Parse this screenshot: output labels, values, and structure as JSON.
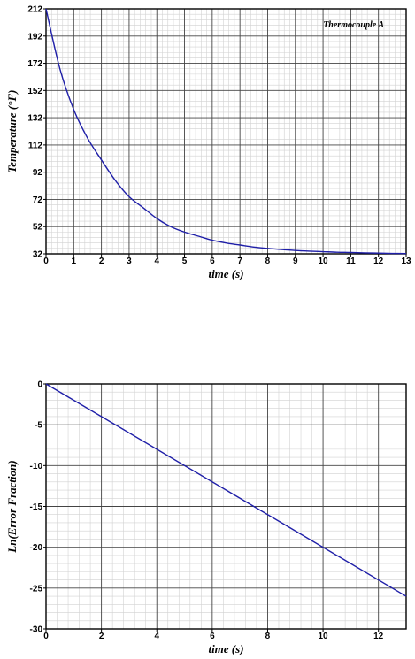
{
  "chart_data": [
    {
      "type": "line",
      "title": "",
      "annotation": "Thermocouple A",
      "xlabel": "time (s)",
      "ylabel": "Temperature (°F)",
      "xlim": [
        0,
        13
      ],
      "ylim": [
        32,
        212
      ],
      "xticks": [
        0,
        1,
        2,
        3,
        4,
        5,
        6,
        7,
        8,
        9,
        10,
        11,
        12,
        13
      ],
      "yticks": [
        32,
        52,
        72,
        92,
        112,
        132,
        152,
        172,
        192,
        212
      ],
      "grid": true,
      "line_color": "#1f1fa8",
      "series": [
        {
          "x": [
            0,
            0.5,
            1,
            1.5,
            2,
            2.5,
            3,
            3.5,
            4,
            4.5,
            5,
            5.5,
            6,
            6.5,
            7,
            7.5,
            8,
            8.5,
            9,
            9.5,
            10,
            10.5,
            11,
            11.5,
            12,
            12.5,
            13
          ],
          "y": [
            212,
            168,
            138,
            117,
            101,
            86,
            74,
            66,
            58,
            52,
            48,
            45,
            42,
            40,
            38.5,
            37,
            36,
            35.2,
            34.5,
            34,
            33.6,
            33.2,
            33,
            32.7,
            32.5,
            32.3,
            32.2
          ]
        }
      ]
    },
    {
      "type": "line",
      "title": "",
      "xlabel": "time (s)",
      "ylabel": "Ln(Error Fraction)",
      "xlim": [
        0,
        13
      ],
      "ylim": [
        -30,
        0
      ],
      "xticks": [
        0,
        2,
        4,
        6,
        8,
        10,
        12
      ],
      "yticks": [
        0,
        -5,
        -10,
        -15,
        -20,
        -25,
        -30
      ],
      "grid": true,
      "line_color": "#1f1fa8",
      "series": [
        {
          "x": [
            0,
            13
          ],
          "y": [
            0,
            -26
          ]
        }
      ]
    }
  ]
}
